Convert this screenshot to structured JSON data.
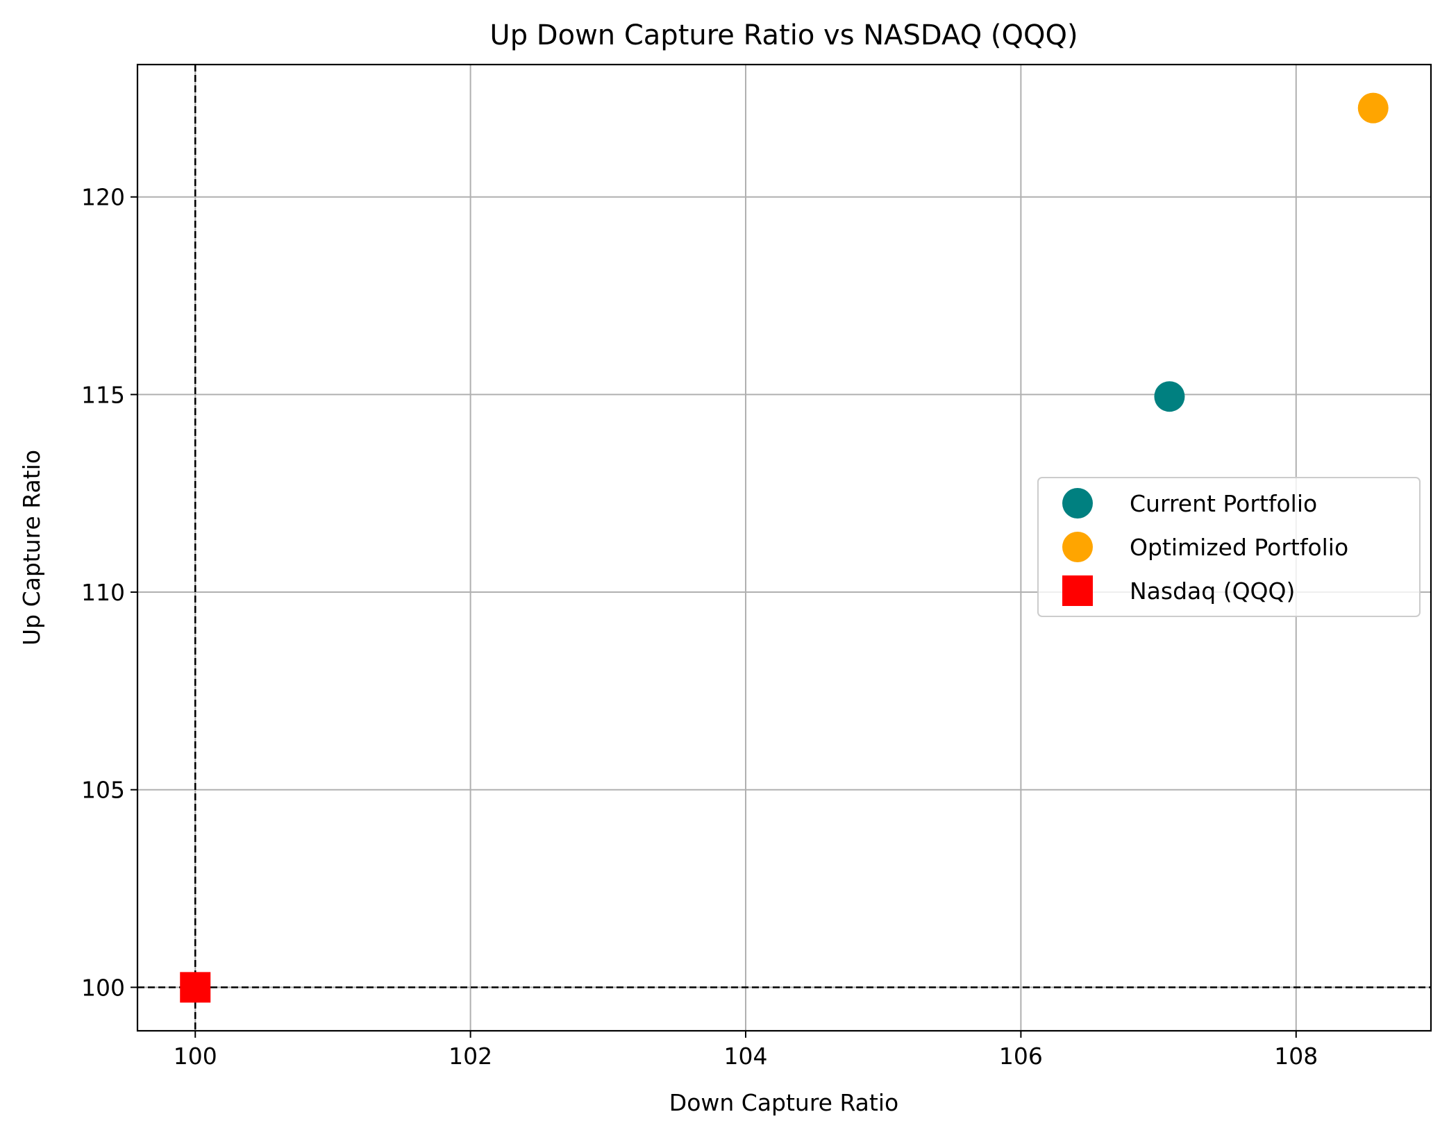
{
  "chart_data": {
    "type": "scatter",
    "title": "Up Down Capture Ratio vs NASDAQ (QQQ)",
    "xlabel": "Down Capture Ratio",
    "ylabel": "Up Capture Ratio",
    "xlim": [
      99.58,
      108.98
    ],
    "ylim": [
      98.9,
      123.35
    ],
    "xticks": [
      100,
      102,
      104,
      106,
      108
    ],
    "yticks": [
      100,
      105,
      110,
      115,
      120
    ],
    "xtick_labels": [
      "100",
      "102",
      "104",
      "106",
      "108"
    ],
    "ytick_labels": [
      "100",
      "105",
      "110",
      "115",
      "120"
    ],
    "grid": true,
    "reference_lines": {
      "vertical_x": 100,
      "horizontal_y": 100,
      "style": "dashed",
      "color": "#000000"
    },
    "legend_position": "center-right",
    "series": [
      {
        "name": "Current Portfolio",
        "marker": "circle",
        "color": "#008080",
        "x": [
          107.08
        ],
        "y": [
          114.95
        ]
      },
      {
        "name": "Optimized Portfolio",
        "marker": "circle",
        "color": "#FFA500",
        "x": [
          108.56
        ],
        "y": [
          122.25
        ]
      },
      {
        "name": "Nasdaq (QQQ)",
        "marker": "square",
        "color": "#FF0000",
        "x": [
          100
        ],
        "y": [
          100
        ]
      }
    ]
  }
}
